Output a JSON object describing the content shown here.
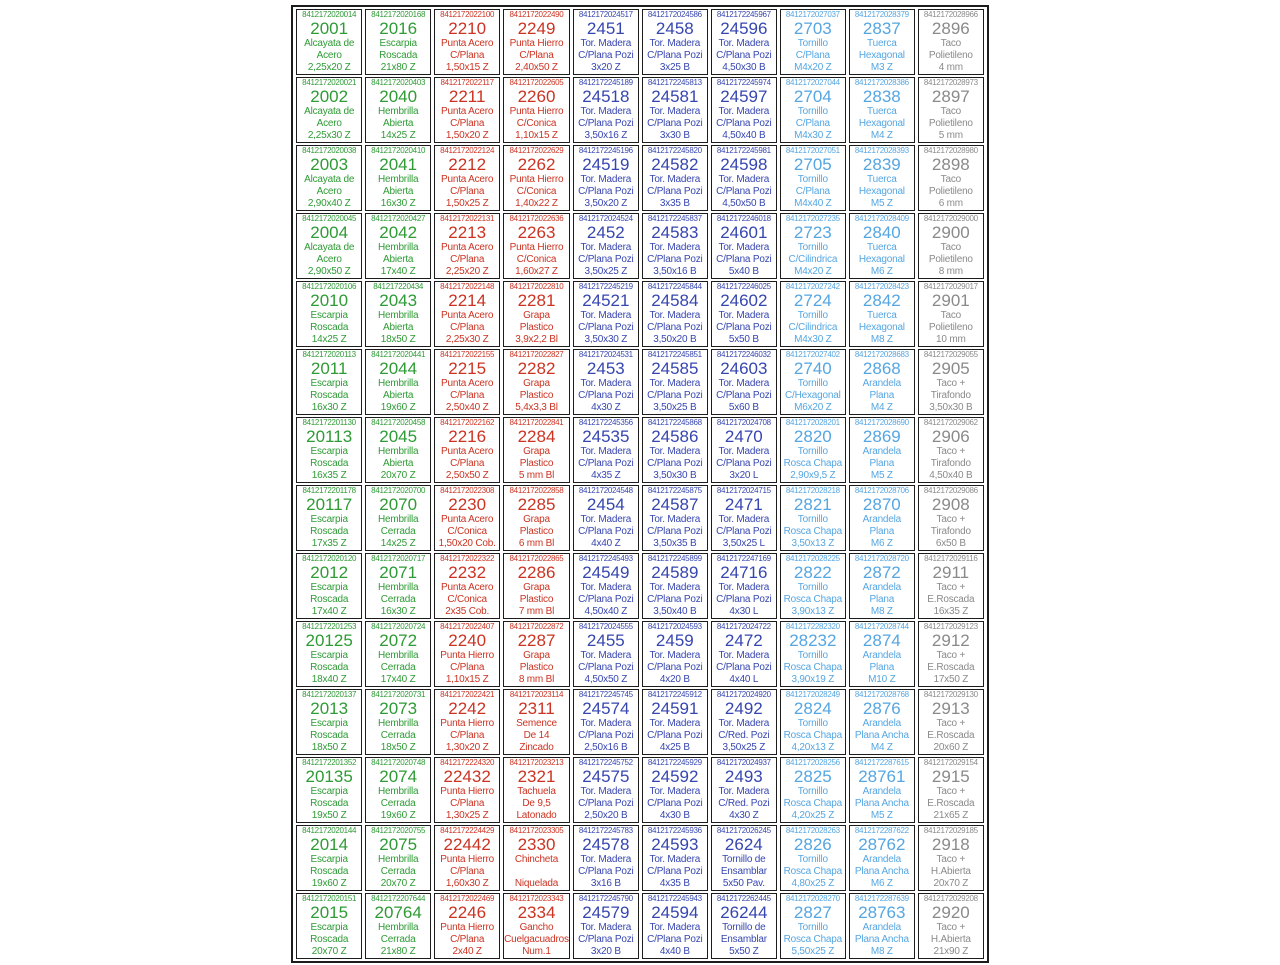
{
  "table": {
    "column_colors": [
      "#2e9b35",
      "#2e9b35",
      "#cc3322",
      "#cc3322",
      "#3646b0",
      "#3646b0",
      "#3646b0",
      "#55a6e2",
      "#55a6e2",
      "#8a8a8a"
    ],
    "border_color": "#1c1c1c",
    "rows": [
      [
        [
          "8412172020014",
          "2001",
          "Alcayata de",
          "Acero",
          "2,25x20 Z"
        ],
        [
          "8412172020168",
          "2016",
          "Escarpia",
          "Roscada",
          "21x80 Z"
        ],
        [
          "8412172022100",
          "2210",
          "Punta Acero",
          "C/Plana",
          "1,50x15 Z"
        ],
        [
          "8412172022490",
          "2249",
          "Punta Hierro",
          "C/Plana",
          "2,40x50 Z"
        ],
        [
          "8412172024517",
          "2451",
          "Tor. Madera",
          "C/Plana Pozi",
          "3x20 Z"
        ],
        [
          "8412172024586",
          "2458",
          "Tor. Madera",
          "C/Plana Pozi",
          "3x25 B"
        ],
        [
          "8412172245967",
          "24596",
          "Tor. Madera",
          "C/Plana Pozi",
          "4,50x30 B"
        ],
        [
          "8412172027037",
          "2703",
          "Tornillo",
          "C/Plana",
          "M4x20 Z"
        ],
        [
          "8412172028379",
          "2837",
          "Tuerca",
          "Hexagonal",
          "M3 Z"
        ],
        [
          "8412172028966",
          "2896",
          "Taco",
          "Polietileno",
          "4 mm"
        ]
      ],
      [
        [
          "8412172020021",
          "2002",
          "Alcayata de",
          "Acero",
          "2,25x30 Z"
        ],
        [
          "8412172020403",
          "2040",
          "Hembrilla",
          "Abierta",
          "14x25 Z"
        ],
        [
          "8412172022117",
          "2211",
          "Punta Acero",
          "C/Plana",
          "1,50x20 Z"
        ],
        [
          "8412172022605",
          "2260",
          "Punta Hierro",
          "C/Conica",
          "1,10x15 Z"
        ],
        [
          "8412172245189",
          "24518",
          "Tor. Madera",
          "C/Plana Pozi",
          "3,50x16 Z"
        ],
        [
          "8412172245813",
          "24581",
          "Tor. Madera",
          "C/Plana Pozi",
          "3x30 B"
        ],
        [
          "8412172245974",
          "24597",
          "Tor. Madera",
          "C/Plana Pozi",
          "4,50x40 B"
        ],
        [
          "8412172027044",
          "2704",
          "Tornillo",
          "C/Plana",
          "M4x30 Z"
        ],
        [
          "8412172028386",
          "2838",
          "Tuerca",
          "Hexagonal",
          "M4 Z"
        ],
        [
          "8412172028973",
          "2897",
          "Taco",
          "Polietileno",
          "5 mm"
        ]
      ],
      [
        [
          "8412172020038",
          "2003",
          "Alcayata de",
          "Acero",
          "2,90x40 Z"
        ],
        [
          "8412172020410",
          "2041",
          "Hembrilla",
          "Abierta",
          "16x30 Z"
        ],
        [
          "8412172022124",
          "2212",
          "Punta Acero",
          "C/Plana",
          "1,50x25 Z"
        ],
        [
          "8412172022629",
          "2262",
          "Punta Hierro",
          "C/Conica",
          "1,40x22 Z"
        ],
        [
          "8412172245196",
          "24519",
          "Tor. Madera",
          "C/Plana Pozi",
          "3,50x20 Z"
        ],
        [
          "8412172245820",
          "24582",
          "Tor. Madera",
          "C/Plana Pozi",
          "3x35 B"
        ],
        [
          "8412172245981",
          "24598",
          "Tor. Madera",
          "C/Plana Pozi",
          "4,50x50 B"
        ],
        [
          "8412172027051",
          "2705",
          "Tornillo",
          "C/Plana",
          "M4x40 Z"
        ],
        [
          "8412172028393",
          "2839",
          "Tuerca",
          "Hexagonal",
          "M5 Z"
        ],
        [
          "8412172028980",
          "2898",
          "Taco",
          "Polietileno",
          "6 mm"
        ]
      ],
      [
        [
          "8412172020045",
          "2004",
          "Alcayata de",
          "Acero",
          "2,90x50 Z"
        ],
        [
          "8412172020427",
          "2042",
          "Hembrilla",
          "Abierta",
          "17x40 Z"
        ],
        [
          "8412172022131",
          "2213",
          "Punta Acero",
          "C/Plana",
          "2,25x20 Z"
        ],
        [
          "8412172022636",
          "2263",
          "Punta Hierro",
          "C/Conica",
          "1,60x27 Z"
        ],
        [
          "8412172024524",
          "2452",
          "Tor. Madera",
          "C/Plana Pozi",
          "3,50x25 Z"
        ],
        [
          "8412172245837",
          "24583",
          "Tor. Madera",
          "C/Plana Pozi",
          "3,50x16 B"
        ],
        [
          "8412172246018",
          "24601",
          "Tor. Madera",
          "C/Plana Pozi",
          "5x40 B"
        ],
        [
          "8412172027235",
          "2723",
          "Tornillo",
          "C/Cilindrica",
          "M4x20 Z"
        ],
        [
          "8412172028409",
          "2840",
          "Tuerca",
          "Hexagonal",
          "M6 Z"
        ],
        [
          "8412172029000",
          "2900",
          "Taco",
          "Polietileno",
          "8 mm"
        ]
      ],
      [
        [
          "8412172020106",
          "2010",
          "Escarpia",
          "Roscada",
          "14x25 Z"
        ],
        [
          "841217220434",
          "2043",
          "Hembrilla",
          "Abierta",
          "18x50 Z"
        ],
        [
          "8412172022148",
          "2214",
          "Punta Acero",
          "C/Plana",
          "2,25x30 Z"
        ],
        [
          "8412172022810",
          "2281",
          "Grapa",
          "Plastico",
          "3,9x2,2 Bl"
        ],
        [
          "8412172245219",
          "24521",
          "Tor. Madera",
          "C/Plana Pozi",
          "3,50x30 Z"
        ],
        [
          "8412172245844",
          "24584",
          "Tor. Madera",
          "C/Plana Pozi",
          "3,50x20 B"
        ],
        [
          "8412172246025",
          "24602",
          "Tor. Madera",
          "C/Plana Pozi",
          "5x50 B"
        ],
        [
          "8412172027242",
          "2724",
          "Tornillo",
          "C/Cilindrica",
          "M4x30 Z"
        ],
        [
          "8412172028423",
          "2842",
          "Tuerca",
          "Hexagonal",
          "M8 Z"
        ],
        [
          "8412172029017",
          "2901",
          "Taco",
          "Polietileno",
          "10 mm"
        ]
      ],
      [
        [
          "8412172020113",
          "2011",
          "Escarpia",
          "Roscada",
          "16x30 Z"
        ],
        [
          "8412172020441",
          "2044",
          "Hembrilla",
          "Abierta",
          "19x60 Z"
        ],
        [
          "8412172022155",
          "2215",
          "Punta Acero",
          "C/Plana",
          "2,50x40 Z"
        ],
        [
          "8412172022827",
          "2282",
          "Grapa",
          "Plastico",
          "5,4x3,3 Bl"
        ],
        [
          "8412172024531",
          "2453",
          "Tor. Madera",
          "C/Plana Pozi",
          "4x30 Z"
        ],
        [
          "8412172245851",
          "24585",
          "Tor. Madera",
          "C/Plana Pozi",
          "3,50x25 B"
        ],
        [
          "8412172246032",
          "24603",
          "Tor. Madera",
          "C/Plana Pozi",
          "5x60 B"
        ],
        [
          "8412172027402",
          "2740",
          "Tornillo",
          "C/Hexagonal",
          "M6x20 Z"
        ],
        [
          "8412172028683",
          "2868",
          "Arandela",
          "Plana",
          "M4 Z"
        ],
        [
          "8412172029055",
          "2905",
          "Taco +",
          "Tirafondo",
          "3,50x30 B"
        ]
      ],
      [
        [
          "8412172201130",
          "20113",
          "Escarpia",
          "Roscada",
          "16x35 Z"
        ],
        [
          "8412172020458",
          "2045",
          "Hembrilla",
          "Abierta",
          "20x70 Z"
        ],
        [
          "8412172022162",
          "2216",
          "Punta Acero",
          "C/Plana",
          "2,50x50 Z"
        ],
        [
          "8412172022841",
          "2284",
          "Grapa",
          "Plastico",
          "5 mm Bl"
        ],
        [
          "8412172245356",
          "24535",
          "Tor. Madera",
          "C/Plana Pozi",
          "4x35 Z"
        ],
        [
          "8412172245868",
          "24586",
          "Tor. Madera",
          "C/Plana Pozi",
          "3,50x30 B"
        ],
        [
          "8412172024708",
          "2470",
          "Tor. Madera",
          "C/Plana Pozi",
          "3x20 L"
        ],
        [
          "8412172028201",
          "2820",
          "Tornillo",
          "Rosca Chapa",
          "2,90x9,5 Z"
        ],
        [
          "8412172028690",
          "2869",
          "Arandela",
          "Plana",
          "M5 Z"
        ],
        [
          "8412172029062",
          "2906",
          "Taco +",
          "Tirafondo",
          "4,50x40 B"
        ]
      ],
      [
        [
          "8412172201178",
          "20117",
          "Escarpia",
          "Roscada",
          "17x35 Z"
        ],
        [
          "8412172020700",
          "2070",
          "Hembrilla",
          "Cerrada",
          "14x25 Z"
        ],
        [
          "8412172022308",
          "2230",
          "Punta Acero",
          "C/Conica",
          "1,50x20 Cob."
        ],
        [
          "8412172022858",
          "2285",
          "Grapa",
          "Plastico",
          "6 mm Bl"
        ],
        [
          "8412172024548",
          "2454",
          "Tor. Madera",
          "C/Plana Pozi",
          "4x40 Z"
        ],
        [
          "8412172245875",
          "24587",
          "Tor. Madera",
          "C/Plana Pozi",
          "3,50x35 B"
        ],
        [
          "8412172024715",
          "2471",
          "Tor. Madera",
          "C/Plana Pozi",
          "3,50x25 L"
        ],
        [
          "8412172028218",
          "2821",
          "Tornillo",
          "Rosca Chapa",
          "3,50x13 Z"
        ],
        [
          "8412172028706",
          "2870",
          "Arandela",
          "Plana",
          "M6 Z"
        ],
        [
          "8412172029086",
          "2908",
          "Taco +",
          "Tirafondo",
          "6x50 B"
        ]
      ],
      [
        [
          "8412172020120",
          "2012",
          "Escarpia",
          "Roscada",
          "17x40 Z"
        ],
        [
          "8412172020717",
          "2071",
          "Hembrilla",
          "Cerrada",
          "16x30 Z"
        ],
        [
          "8412172022322",
          "2232",
          "Punta Acero",
          "C/Conica",
          "2x35 Cob."
        ],
        [
          "8412172022865",
          "2286",
          "Grapa",
          "Plastico",
          "7 mm Bl"
        ],
        [
          "8412172245493",
          "24549",
          "Tor. Madera",
          "C/Plana Pozi",
          "4,50x40 Z"
        ],
        [
          "8412172245899",
          "24589",
          "Tor. Madera",
          "C/Plana Pozi",
          "3,50x40 B"
        ],
        [
          "8412172247169",
          "24716",
          "Tor. Madera",
          "C/Plana Pozi",
          "4x30 L"
        ],
        [
          "8412172028225",
          "2822",
          "Tornillo",
          "Rosca Chapa",
          "3,90x13 Z"
        ],
        [
          "8412172028720",
          "2872",
          "Arandela",
          "Plana",
          "M8 Z"
        ],
        [
          "8412172029116",
          "2911",
          "Taco +",
          "E.Roscada",
          "16x35 Z"
        ]
      ],
      [
        [
          "8412172201253",
          "20125",
          "Escarpia",
          "Roscada",
          "18x40 Z"
        ],
        [
          "8412172020724",
          "2072",
          "Hembrilla",
          "Cerrada",
          "17x40 Z"
        ],
        [
          "8412172022407",
          "2240",
          "Punta Hierro",
          "C/Plana",
          "1,10x15 Z"
        ],
        [
          "8412172022872",
          "2287",
          "Grapa",
          "Plastico",
          "8 mm Bl"
        ],
        [
          "8412172024555",
          "2455",
          "Tor. Madera",
          "C/Plana Pozi",
          "4,50x50 Z"
        ],
        [
          "8412172024593",
          "2459",
          "Tor. Madera",
          "C/Plana Pozi",
          "4x20 B"
        ],
        [
          "8412172024722",
          "2472",
          "Tor. Madera",
          "C/Plana Pozi",
          "4x40 L"
        ],
        [
          "8412172282320",
          "28232",
          "Tornillo",
          "Rosca Chapa",
          "3,90x19 Z"
        ],
        [
          "8412172028744",
          "2874",
          "Arandela",
          "Plana",
          "M10 Z"
        ],
        [
          "8412172029123",
          "2912",
          "Taco +",
          "E.Roscada",
          "17x50 Z"
        ]
      ],
      [
        [
          "8412172020137",
          "2013",
          "Escarpia",
          "Roscada",
          "18x50 Z"
        ],
        [
          "8412172020731",
          "2073",
          "Hembrilla",
          "Cerrada",
          "18x50 Z"
        ],
        [
          "8412172022421",
          "2242",
          "Punta Hierro",
          "C/Plana",
          "1,30x20 Z"
        ],
        [
          "8412172023114",
          "2311",
          "Semence",
          "De 14",
          "Zincado"
        ],
        [
          "8412172245745",
          "24574",
          "Tor. Madera",
          "C/Plana Pozi",
          "2,50x16 B"
        ],
        [
          "8412172245912",
          "24591",
          "Tor. Madera",
          "C/Plana Pozi",
          "4x25 B"
        ],
        [
          "8412172024920",
          "2492",
          "Tor. Madera",
          "C/Red. Pozi",
          "3,50x25 Z"
        ],
        [
          "8412172028249",
          "2824",
          "Tornillo",
          "Rosca Chapa",
          "4,20x13 Z"
        ],
        [
          "8412172028768",
          "2876",
          "Arandela",
          "Plana Ancha",
          "M4 Z"
        ],
        [
          "8412172029130",
          "2913",
          "Taco +",
          "E.Roscada",
          "20x60 Z"
        ]
      ],
      [
        [
          "8412172201352",
          "20135",
          "Escarpia",
          "Roscada",
          "19x50 Z"
        ],
        [
          "8412172020748",
          "2074",
          "Hembrilla",
          "Cerrada",
          "19x60 Z"
        ],
        [
          "8412172224320",
          "22432",
          "Punta Hierro",
          "C/Plana",
          "1,30x25 Z"
        ],
        [
          "8412172023213",
          "2321",
          "Tachuela",
          "De 9,5",
          "Latonado"
        ],
        [
          "8412172245752",
          "24575",
          "Tor. Madera",
          "C/Plana Pozi",
          "2,50x20 B"
        ],
        [
          "8412172245929",
          "24592",
          "Tor. Madera",
          "C/Plana Pozi",
          "4x30 B"
        ],
        [
          "8412172024937",
          "2493",
          "Tor. Madera",
          "C/Red. Pozi",
          "4x30 Z"
        ],
        [
          "8412172028256",
          "2825",
          "Tornillo",
          "Rosca Chapa",
          "4,20x25 Z"
        ],
        [
          "8412172287615",
          "28761",
          "Arandela",
          "Plana Ancha",
          "M5 Z"
        ],
        [
          "8412172029154",
          "2915",
          "Taco +",
          "E.Roscada",
          "21x65 Z"
        ]
      ],
      [
        [
          "8412172020144",
          "2014",
          "Escarpia",
          "Roscada",
          "19x60 Z"
        ],
        [
          "8412172020755",
          "2075",
          "Hembrilla",
          "Cerrada",
          "20x70 Z"
        ],
        [
          "8412172224429",
          "22442",
          "Punta Hierro",
          "C/Plana",
          "1,60x30 Z"
        ],
        [
          "8412172023305",
          "2330",
          "Chincheta",
          "",
          "Niquelada"
        ],
        [
          "8412172245783",
          "24578",
          "Tor. Madera",
          "C/Plana Pozi",
          "3x16 B"
        ],
        [
          "8412172245936",
          "24593",
          "Tor. Madera",
          "C/Plana Pozi",
          "4x35 B"
        ],
        [
          "8412172026245",
          "2624",
          "Tornillo de",
          "Ensamblar",
          "5x50 Pav."
        ],
        [
          "8412172028263",
          "2826",
          "Tornillo",
          "Rosca Chapa",
          "4,80x25 Z"
        ],
        [
          "8412172287622",
          "28762",
          "Arandela",
          "Plana Ancha",
          "M6 Z"
        ],
        [
          "8412172029185",
          "2918",
          "Taco +",
          "H.Abierta",
          "20x70 Z"
        ]
      ],
      [
        [
          "8412172020151",
          "2015",
          "Escarpia",
          "Roscada",
          "20x70 Z"
        ],
        [
          "8412172207644",
          "20764",
          "Hembrilla",
          "Cerrada",
          "21x80 Z"
        ],
        [
          "8412172022469",
          "2246",
          "Punta Hierro",
          "C/Plana",
          "2x40 Z"
        ],
        [
          "8412172023343",
          "2334",
          "Gancho",
          "Cuelgacuadros",
          "Num.1"
        ],
        [
          "8412172245790",
          "24579",
          "Tor. Madera",
          "C/Plana Pozi",
          "3x20 B"
        ],
        [
          "8412172245943",
          "24594",
          "Tor. Madera",
          "C/Plana Pozi",
          "4x40 B"
        ],
        [
          "8412172262445",
          "26244",
          "Tornillo de",
          "Ensamblar",
          "5x50 Z"
        ],
        [
          "8412172028270",
          "2827",
          "Tornillo",
          "Rosca Chapa",
          "5,50x25 Z"
        ],
        [
          "8412172287639",
          "28763",
          "Arandela",
          "Plana Ancha",
          "M8 Z"
        ],
        [
          "8412172029208",
          "2920",
          "Taco +",
          "H.Abierta",
          "21x90 Z"
        ]
      ]
    ]
  }
}
